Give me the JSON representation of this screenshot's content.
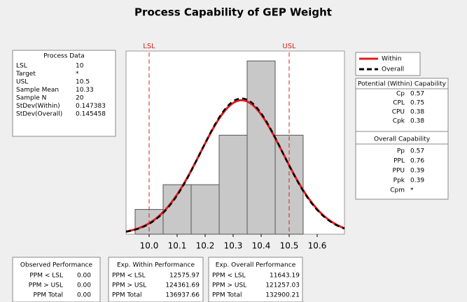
{
  "chart_data": {
    "type": "histogram",
    "title": "Process Capability of GEP Weight",
    "bins": [
      9.95,
      10.05,
      10.15,
      10.25,
      10.35,
      10.45,
      10.55
    ],
    "counts": [
      1,
      2,
      2,
      4,
      7,
      4
    ],
    "bar_color": "#c8c8c8",
    "xlim": [
      9.9175,
      10.6975
    ],
    "xticks": [
      {
        "value": 10,
        "label": "10.0"
      },
      10.1,
      10.2,
      10.3,
      10.4,
      10.5,
      10.6
    ],
    "ylim": [
      0,
      7.4
    ],
    "spec_lines": [
      {
        "label": "LSL",
        "value": 10
      },
      {
        "label": "USL",
        "value": 10.5
      }
    ],
    "series": [
      {
        "name": "Within",
        "color": "#e41a1c",
        "dashed": false
      },
      {
        "name": "Overall",
        "color": "#000000",
        "dashed": true
      }
    ]
  },
  "process_data": {
    "title": "Process Data",
    "rows": [
      [
        "LSL",
        10
      ],
      [
        "Target",
        "*"
      ],
      [
        "USL",
        10.5
      ],
      [
        "Sample Mean",
        10.33
      ],
      [
        "Sample N",
        20
      ],
      [
        "StDev(Within)",
        0.147383
      ],
      [
        "StDev(Overall)",
        0.145458
      ]
    ]
  },
  "potential": {
    "title": "Potential (Within) Capability",
    "rows": [
      [
        "Cp",
        0.57
      ],
      [
        "CPL",
        0.75
      ],
      [
        "CPU",
        0.38
      ],
      [
        "Cpk",
        0.38
      ]
    ]
  },
  "overall": {
    "title": "Overall Capability",
    "rows": [
      [
        "Pp",
        0.57
      ],
      [
        "PPL",
        0.76
      ],
      [
        "PPU",
        0.39
      ],
      [
        "Ppk",
        0.39
      ],
      [
        "Cpm",
        "*"
      ]
    ]
  },
  "observed": {
    "title": "Observed Performance",
    "rows": [
      [
        "PPM < LSL",
        "0.00"
      ],
      [
        "PPM > USL",
        "0.00"
      ],
      [
        "PPM Total",
        "0.00"
      ]
    ]
  },
  "exp_within": {
    "title": "Exp. Within Performance",
    "rows": [
      [
        "PPM < LSL",
        12575.97
      ],
      [
        "PPM > USL",
        124361.69
      ],
      [
        "PPM Total",
        136937.66
      ]
    ]
  },
  "exp_overall": {
    "title": "Exp. Overall Performance",
    "rows": [
      [
        "PPM < LSL",
        11643.19
      ],
      [
        "PPM > USL",
        121257.03
      ],
      [
        "PPM Total",
        132900.21
      ]
    ]
  }
}
